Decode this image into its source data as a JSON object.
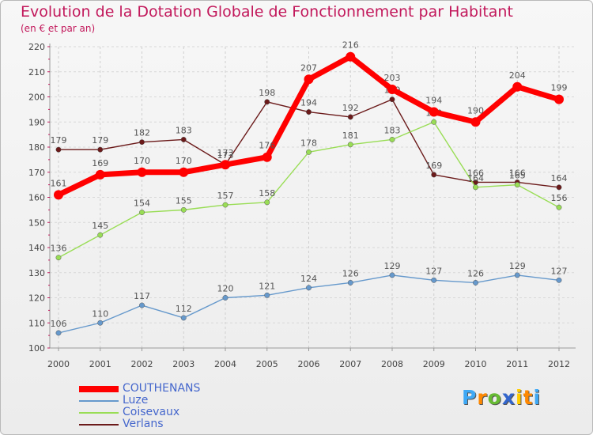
{
  "chart_data": {
    "type": "line",
    "title": "Evolution de la Dotation Globale de Fonctionnement par Habitant",
    "subtitle": "(en € et par an)",
    "xlabel": "",
    "ylabel": "",
    "categories": [
      "2000",
      "2001",
      "2002",
      "2003",
      "2004",
      "2005",
      "2006",
      "2007",
      "2008",
      "2009",
      "2010",
      "2011",
      "2012"
    ],
    "ylim": [
      100,
      220
    ],
    "yticks": [
      100,
      110,
      120,
      130,
      140,
      150,
      160,
      170,
      180,
      190,
      200,
      210,
      220
    ],
    "series": [
      {
        "name": "Verlans",
        "color": "#6b1a1a",
        "values": [
          179,
          179,
          182,
          183,
          173,
          198,
          194,
          192,
          199,
          169,
          166,
          166,
          164
        ]
      },
      {
        "name": "Coisevaux",
        "color": "#99dd55",
        "values": [
          136,
          145,
          154,
          155,
          157,
          158,
          178,
          181,
          183,
          190,
          164,
          165,
          156
        ]
      },
      {
        "name": "Luze",
        "color": "#6699cc",
        "values": [
          106,
          110,
          117,
          112,
          120,
          121,
          124,
          126,
          129,
          127,
          126,
          129,
          127
        ]
      },
      {
        "name": "COUTHENANS",
        "color": "#ff0000",
        "values": [
          161,
          169,
          170,
          170,
          173,
          176,
          207,
          216,
          203,
          194,
          190,
          204,
          199
        ]
      }
    ],
    "legend_order": [
      "COUTHENANS",
      "Luze",
      "Coisevaux",
      "Verlans"
    ],
    "legend_position": "bottom-left"
  },
  "logo": {
    "text": "Proxiti",
    "letters": [
      "P",
      "r",
      "o",
      "x",
      "i",
      "t",
      "i"
    ],
    "colors": [
      "#3fa9f5",
      "#ff8800",
      "#66bb33",
      "#3366cc",
      "#ffcc00",
      "#ff8800",
      "#3fa9f5"
    ]
  }
}
